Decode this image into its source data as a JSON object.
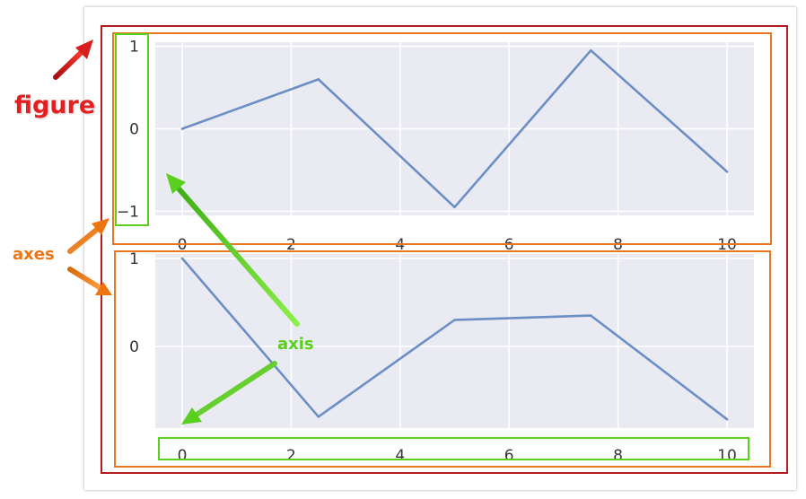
{
  "chart_data": [
    {
      "type": "line",
      "x": [
        0,
        2.5,
        5,
        7.5,
        10
      ],
      "y": [
        0.0,
        0.6,
        -0.95,
        0.95,
        -0.52
      ],
      "xlim": [
        -0.5,
        10.5
      ],
      "ylim": [
        -1.05,
        1.05
      ],
      "xticks": [
        0,
        2,
        4,
        6,
        8,
        10
      ],
      "yticks": [
        -1,
        0,
        1
      ],
      "ytick_labels": [
        "−1",
        "0",
        "1"
      ],
      "grid": true,
      "line_color": "#6b8fc4",
      "plot_bg": "#eaeaf2"
    },
    {
      "type": "line",
      "x": [
        0,
        2.5,
        5,
        7.5,
        10
      ],
      "y": [
        1.0,
        -0.8,
        0.3,
        0.35,
        -0.83
      ],
      "xlim": [
        -0.5,
        10.5
      ],
      "ylim": [
        -0.93,
        1.05
      ],
      "xticks": [
        0,
        2,
        4,
        6,
        8,
        10
      ],
      "yticks": [
        0,
        1
      ],
      "ytick_labels": [
        "0",
        "1"
      ],
      "grid": true,
      "line_color": "#6b8fc4",
      "plot_bg": "#eaeaf2"
    }
  ],
  "annotations": {
    "figure_label": "figure",
    "axes_label": "axes",
    "axis_label": "axis",
    "figure_color": "#c0161c",
    "axes_color": "#e87722",
    "axis_color": "#5ad01e"
  }
}
